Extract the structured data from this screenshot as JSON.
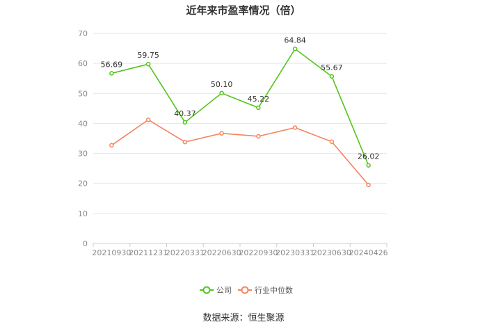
{
  "chart_data": {
    "type": "line",
    "title": "近年来市盈率情况（倍）",
    "categories": [
      "20210930",
      "20211231",
      "20220331",
      "20220630",
      "20220930",
      "20230331",
      "20230630",
      "20240426"
    ],
    "series": [
      {
        "name": "公司",
        "color": "#52c41a",
        "values": [
          56.69,
          59.75,
          40.37,
          50.1,
          45.22,
          64.84,
          55.67,
          26.02
        ],
        "labels": [
          "56.69",
          "59.75",
          "40.37",
          "50.10",
          "45.22",
          "64.84",
          "55.67",
          "26.02"
        ]
      },
      {
        "name": "行业中位数",
        "color": "#f4845f",
        "values": [
          32.7,
          41.2,
          33.8,
          36.7,
          35.7,
          38.6,
          33.9,
          19.5
        ]
      }
    ],
    "y_ticks": [
      "0",
      "10",
      "20",
      "30",
      "40",
      "50",
      "60",
      "70"
    ],
    "ylim": [
      0,
      70
    ],
    "grid": true,
    "legend": "bottom-center",
    "source": "数据来源：恒生聚源"
  }
}
